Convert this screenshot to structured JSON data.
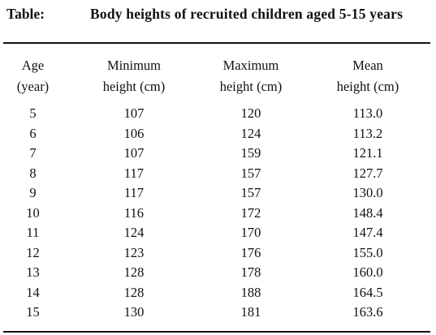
{
  "caption": {
    "label": "Table:",
    "title": "Body heights of recruited children aged 5-15 years"
  },
  "table": {
    "headers": [
      {
        "line1": "Age",
        "line2": "(year)"
      },
      {
        "line1": "Minimum",
        "line2": "height (cm)"
      },
      {
        "line1": "Maximum",
        "line2": "height (cm)"
      },
      {
        "line1": "Mean",
        "line2": "height (cm)"
      }
    ],
    "rows": [
      [
        "5",
        "107",
        "120",
        "113.0"
      ],
      [
        "6",
        "106",
        "124",
        "113.2"
      ],
      [
        "7",
        "107",
        "159",
        "121.1"
      ],
      [
        "8",
        "117",
        "157",
        "127.7"
      ],
      [
        "9",
        "117",
        "157",
        "130.0"
      ],
      [
        "10",
        "116",
        "172",
        "148.4"
      ],
      [
        "11",
        "124",
        "170",
        "147.4"
      ],
      [
        "12",
        "123",
        "176",
        "155.0"
      ],
      [
        "13",
        "128",
        "178",
        "160.0"
      ],
      [
        "14",
        "128",
        "188",
        "164.5"
      ],
      [
        "15",
        "130",
        "181",
        "163.6"
      ]
    ]
  }
}
